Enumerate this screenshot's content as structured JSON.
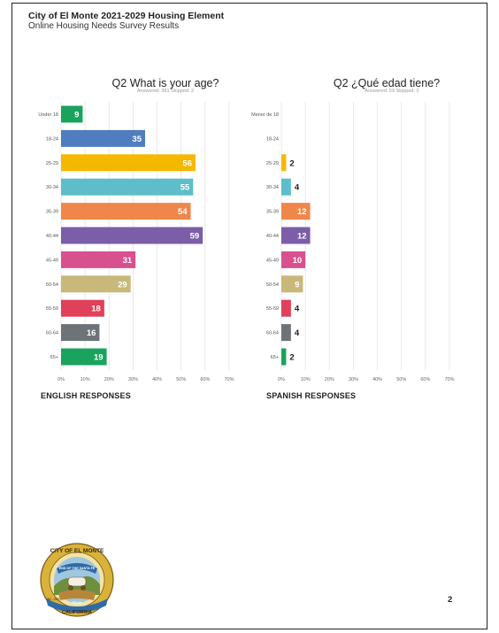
{
  "header": {
    "title": "City of El Monte 2021-2029 Housing Element",
    "subtitle": "Online Housing Needs Survey Results"
  },
  "page_number": "2",
  "seal": {
    "text_top": "CITY OF EL MONTE",
    "text_ribbon": "END OF THE SANTA FE",
    "text_inc": "INC. 1912",
    "text_trail": "TRAIL",
    "text_bottom": "CALIFORNIA"
  },
  "chart_data": [
    {
      "type": "bar",
      "orientation": "horizontal",
      "title": "Q2 What is your age?",
      "meta": {
        "answered_label": "Answered: 381",
        "skipped_label": "Skipped: 2"
      },
      "categories": [
        "Under 18",
        "18-24",
        "25-29",
        "30-34",
        "35-39",
        "40-44",
        "45-49",
        "50-54",
        "55-59",
        "60-64",
        "65+"
      ],
      "values": [
        9,
        35,
        56,
        55,
        54,
        59,
        31,
        29,
        18,
        16,
        19
      ],
      "value_labels": [
        "9",
        "35",
        "56",
        "55",
        "54",
        "59",
        "31",
        "29",
        "18",
        "16",
        "19"
      ],
      "colors": [
        "#1aa35c",
        "#4f7dbf",
        "#f5b800",
        "#5dbec9",
        "#f0874a",
        "#7b5ea7",
        "#d9508f",
        "#c8b87a",
        "#e0405a",
        "#6e7378",
        "#1aa35c"
      ],
      "xlim": [
        0,
        70
      ],
      "xticks": [
        "0%",
        "10%",
        "20%",
        "30%",
        "40%",
        "50%",
        "60%",
        "70%"
      ],
      "x_unit": "percent",
      "grid": true,
      "caption": "ENGLISH RESPONSES"
    },
    {
      "type": "bar",
      "orientation": "horizontal",
      "title": "Q2 ¿Qué edad tiene?",
      "meta": {
        "answered_label": "Answered: 59",
        "skipped_label": "Skipped: 0"
      },
      "categories": [
        "Menor de 18",
        "18-24",
        "25-29",
        "30-34",
        "35-39",
        "40-44",
        "45-49",
        "50-54",
        "55-59",
        "60-64",
        "65+"
      ],
      "values": [
        0,
        0,
        2,
        4,
        12,
        12,
        10,
        9,
        4,
        4,
        2
      ],
      "value_labels": [
        "",
        "",
        "2",
        "4",
        "12",
        "12",
        "10",
        "9",
        "4",
        "4",
        "2"
      ],
      "colors": [
        "#1aa35c",
        "#4f7dbf",
        "#f5b800",
        "#5dbec9",
        "#f0874a",
        "#7b5ea7",
        "#d9508f",
        "#c8b87a",
        "#e0405a",
        "#6e7378",
        "#1aa35c"
      ],
      "xlim": [
        0,
        70
      ],
      "xticks": [
        "0%",
        "10%",
        "20%",
        "30%",
        "40%",
        "50%",
        "60%",
        "70%"
      ],
      "x_unit": "percent",
      "grid": true,
      "caption": "SPANISH RESPONSES"
    }
  ]
}
